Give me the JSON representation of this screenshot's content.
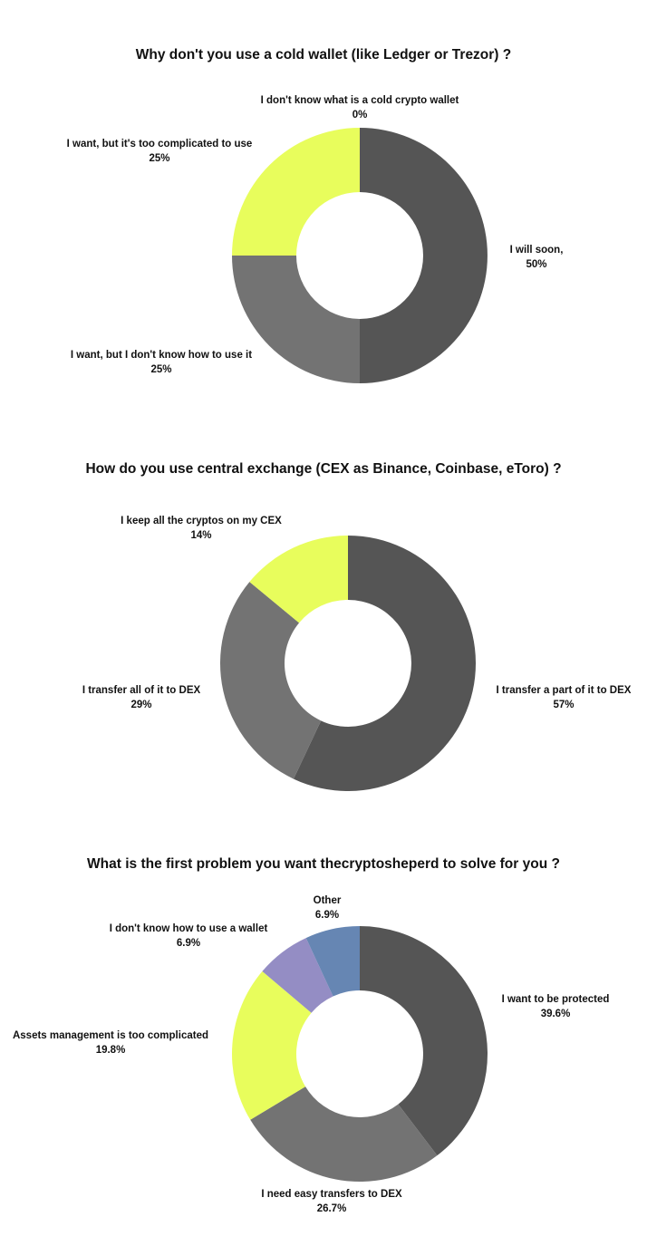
{
  "chart_data": [
    {
      "type": "pie",
      "title": "Why don't you use a cold wallet (like Ledger or Trezor) ?",
      "series": [
        {
          "values": [
            50,
            25,
            25,
            0
          ],
          "labels": [
            "I will soon,",
            "I want, but I don't know how to use it",
            "I want, but it's too complicated to use",
            "I don't know what is a cold crypto wallet"
          ],
          "value_labels": [
            "50%",
            "25%",
            "25%",
            "0%"
          ],
          "colors": [
            "#555555",
            "#737373",
            "#e8fd5c",
            "#a0a0a0"
          ]
        }
      ]
    },
    {
      "type": "pie",
      "title": "How do you use central exchange (CEX as Binance, Coinbase, eToro) ?",
      "series": [
        {
          "values": [
            57,
            29,
            14
          ],
          "labels": [
            "I transfer a part of it to DEX",
            "I transfer all of it to DEX",
            "I keep all the cryptos on my CEX"
          ],
          "value_labels": [
            "57%",
            "29%",
            "14%"
          ],
          "colors": [
            "#555555",
            "#737373",
            "#e8fd5c"
          ]
        }
      ]
    },
    {
      "type": "pie",
      "title": "What is the first problem you want thecryptosheperd to solve for you ?",
      "series": [
        {
          "values": [
            39.6,
            26.7,
            19.8,
            6.9,
            6.9
          ],
          "labels": [
            "I want to be protected",
            "I need easy transfers to DEX",
            "Assets management is too complicated",
            "I don't know how to use a wallet",
            "Other"
          ],
          "value_labels": [
            "39.6%",
            "26.7%",
            "19.8%",
            "6.9%",
            "6.9%"
          ],
          "colors": [
            "#555555",
            "#737373",
            "#e8fd5c",
            "#948dc4",
            "#6686b3"
          ]
        }
      ]
    }
  ]
}
